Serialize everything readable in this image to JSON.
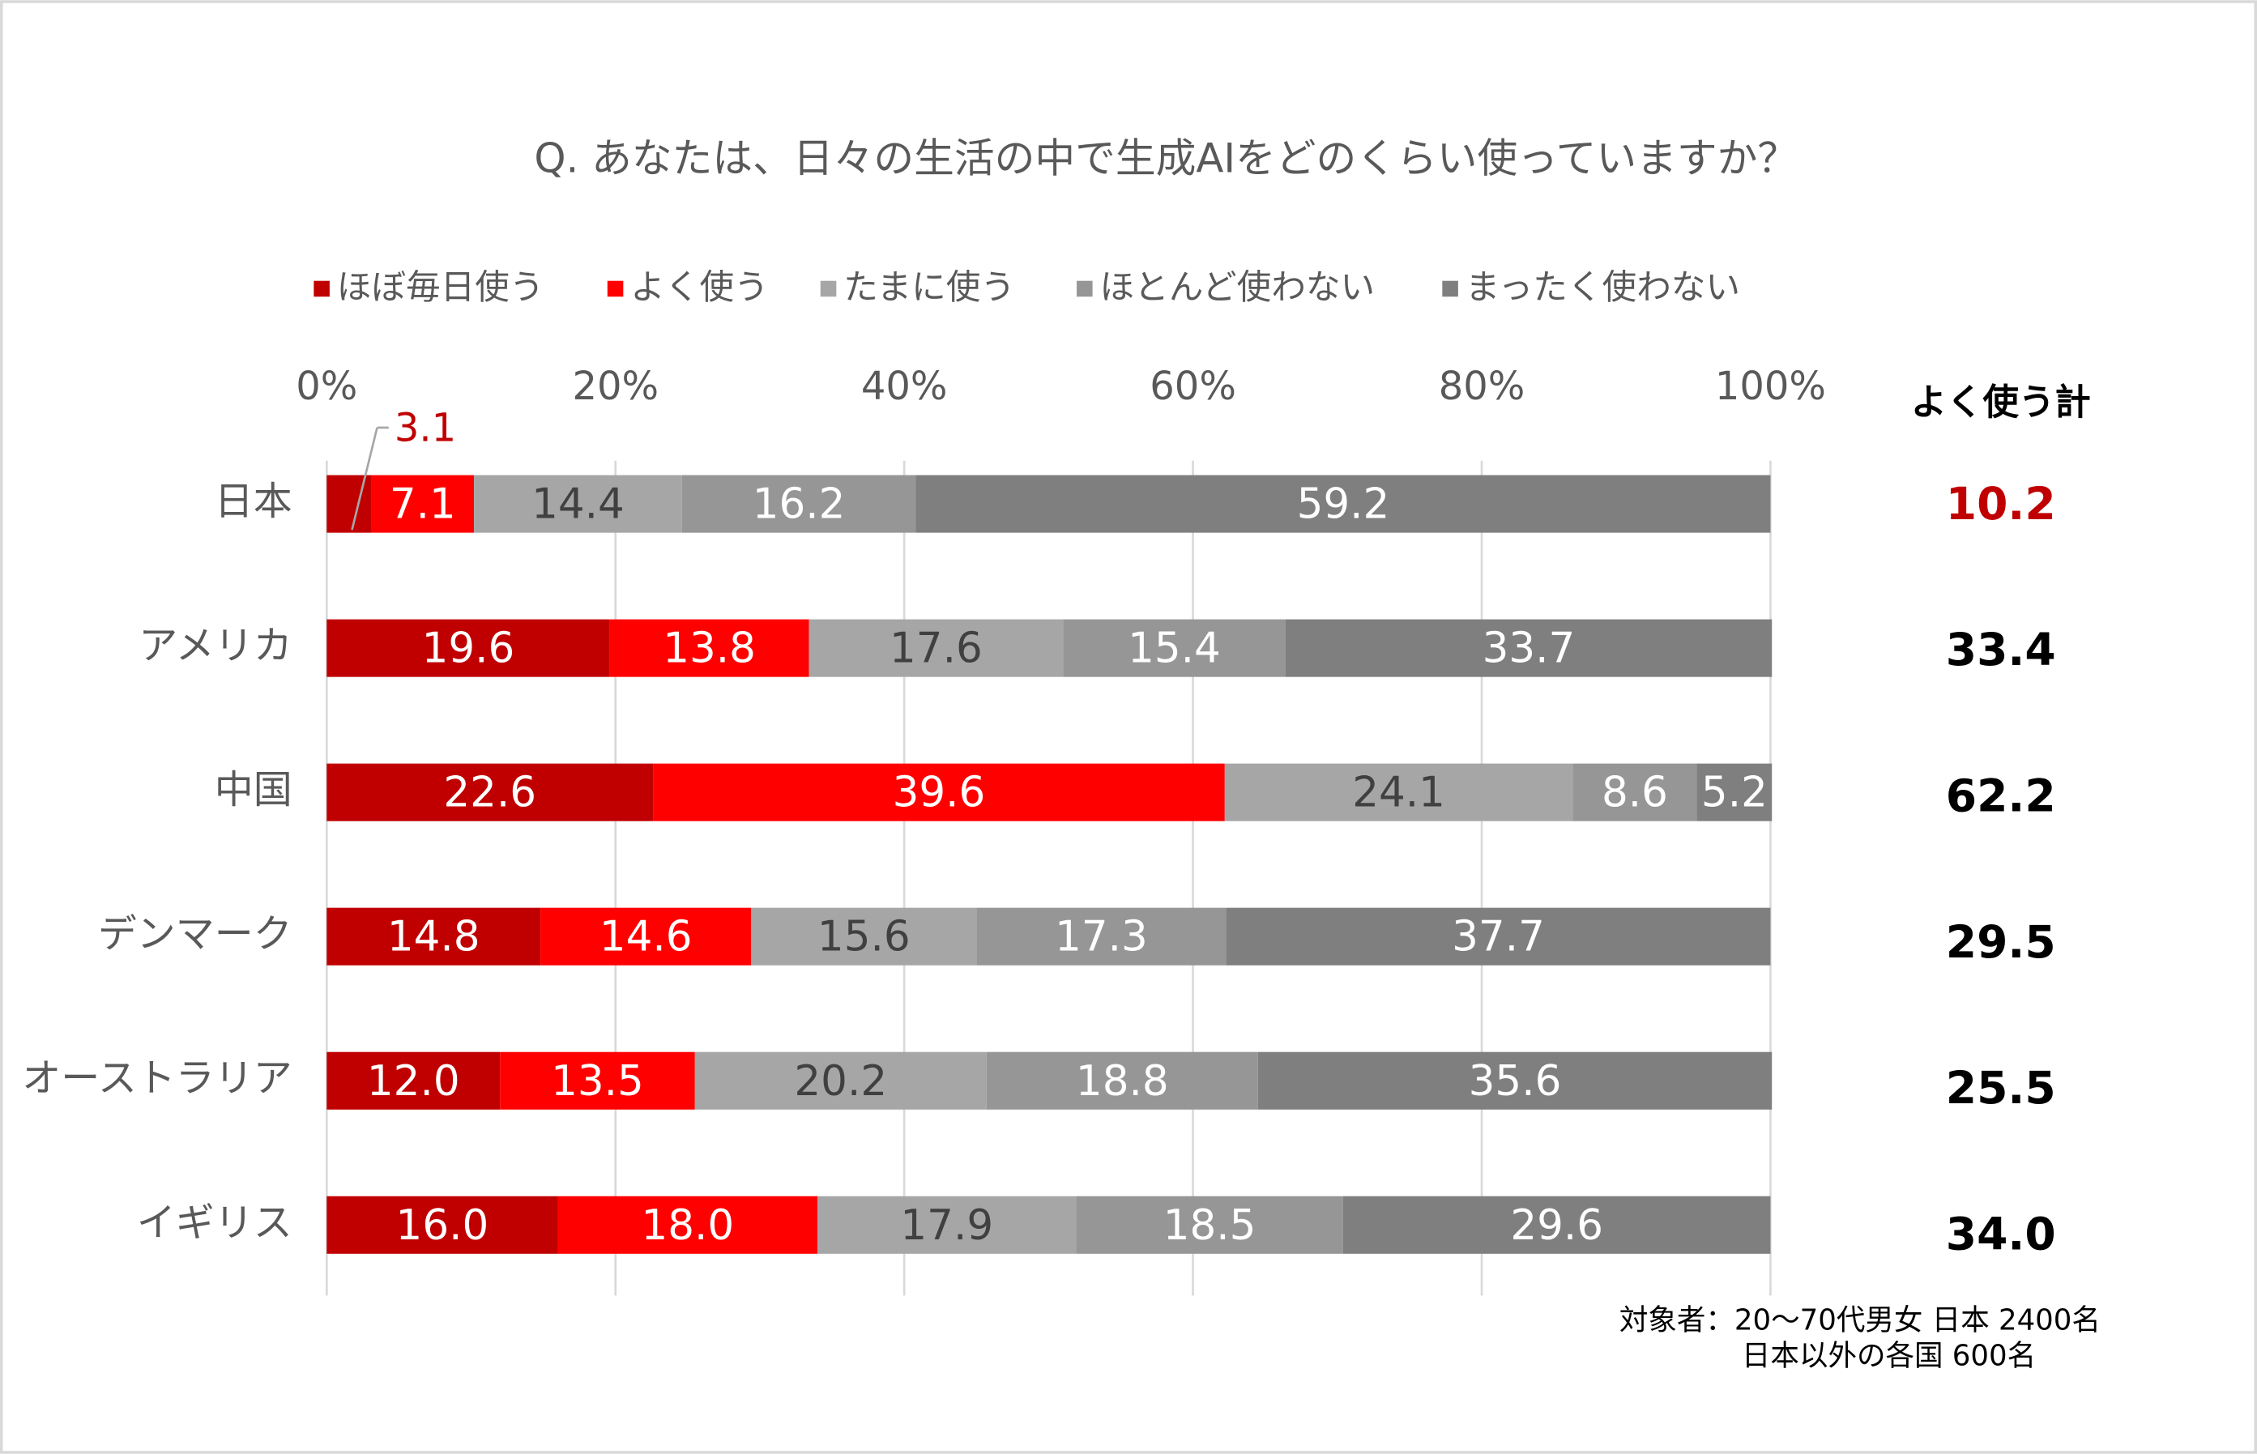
{
  "chart_data": {
    "type": "stacked_barh",
    "title": "Q. あなたは、日々の生活の中で生成AIをどのくらい使っていますか？",
    "categories": [
      "日本",
      "アメリカ",
      "中国",
      "デンマーク",
      "オーストラリア",
      "イギリス"
    ],
    "series": [
      {
        "name": "ほぼ毎日使う",
        "color": "#c00000",
        "label_color": "#ffffff",
        "values": [
          3.1,
          19.6,
          22.6,
          14.8,
          12.0,
          16.0
        ],
        "value_labels": [
          "3.1",
          "19.6",
          "22.6",
          "14.8",
          "12.0",
          "16.0"
        ]
      },
      {
        "name": "よく使う",
        "color": "#ff0000",
        "label_color": "#ffffff",
        "values": [
          7.1,
          13.8,
          39.6,
          14.6,
          13.5,
          18.0
        ],
        "value_labels": [
          "7.1",
          "13.8",
          "39.6",
          "14.6",
          "13.5",
          "18.0"
        ]
      },
      {
        "name": "たまに使う",
        "color": "#a6a6a6",
        "label_color": "#404040",
        "values": [
          14.4,
          17.6,
          24.1,
          15.6,
          20.2,
          17.9
        ],
        "value_labels": [
          "14.4",
          "17.6",
          "24.1",
          "15.6",
          "20.2",
          "17.9"
        ]
      },
      {
        "name": "ほとんど使わない",
        "color": "#969696",
        "label_color": "#ffffff",
        "values": [
          16.2,
          15.4,
          8.6,
          17.3,
          18.8,
          18.5
        ],
        "value_labels": [
          "16.2",
          "15.4",
          "8.6",
          "17.3",
          "18.8",
          "18.5"
        ]
      },
      {
        "name": "まったく使わない",
        "color": "#7f7f7f",
        "label_color": "#ffffff",
        "values": [
          59.2,
          33.7,
          5.2,
          37.7,
          35.6,
          29.6
        ],
        "value_labels": [
          "59.2",
          "33.7",
          "5.2",
          "37.7",
          "35.6",
          "29.6"
        ]
      }
    ],
    "xlim": [
      0,
      100
    ],
    "xticks": [
      {
        "value": 0,
        "label": "0%"
      },
      {
        "value": 20,
        "label": "20%"
      },
      {
        "value": 40,
        "label": "40%"
      },
      {
        "value": 60,
        "label": "60%"
      },
      {
        "value": 80,
        "label": "80%"
      },
      {
        "value": 100,
        "label": "100%"
      }
    ],
    "grid": true,
    "legend": "top",
    "totals": {
      "label": "よく使う計",
      "values": [
        10.2,
        33.4,
        62.2,
        29.5,
        25.5,
        34.0
      ],
      "value_labels": [
        "10.2",
        "33.4",
        "62.2",
        "29.5",
        "25.5",
        "34.0"
      ],
      "colors": [
        "#c00000",
        "#000000",
        "#000000",
        "#000000",
        "#000000",
        "#000000"
      ]
    },
    "notes": [
      "対象者：20～70代男女 日本 2400名",
      "日本以外の各国 600名"
    ]
  }
}
